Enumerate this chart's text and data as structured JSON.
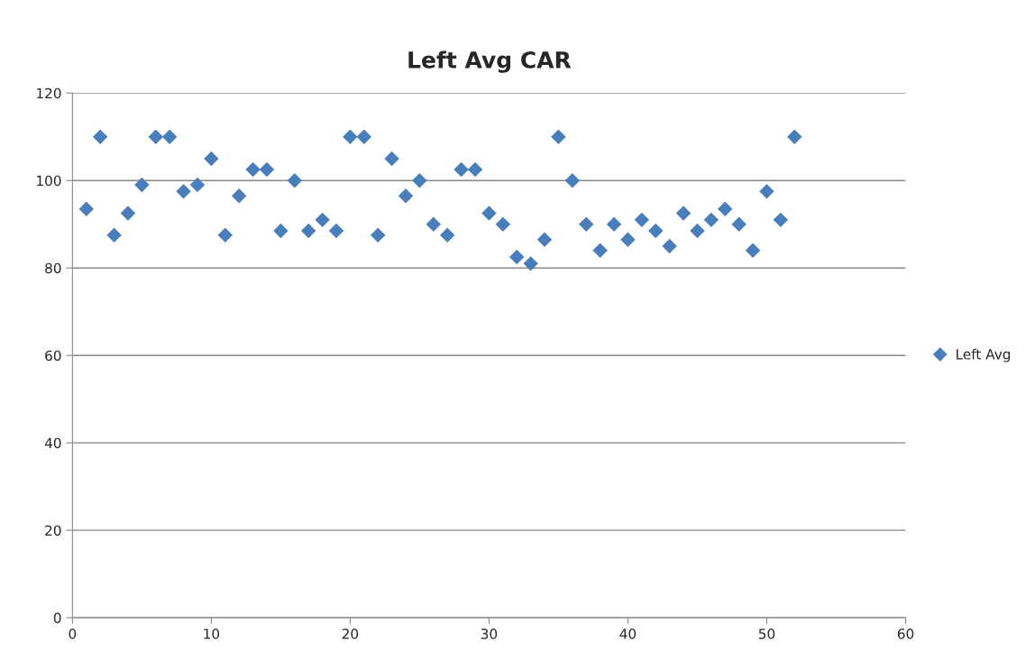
{
  "chart_data": {
    "type": "scatter",
    "title": "Left Avg CAR",
    "x": [
      1,
      2,
      3,
      4,
      5,
      6,
      7,
      8,
      9,
      10,
      11,
      12,
      13,
      14,
      15,
      16,
      17,
      18,
      19,
      20,
      21,
      22,
      23,
      24,
      25,
      26,
      27,
      28,
      29,
      30,
      31,
      32,
      33,
      34,
      35,
      36,
      37,
      38,
      39,
      40,
      41,
      42,
      43,
      44,
      45,
      46,
      47,
      48,
      49,
      50,
      51,
      52
    ],
    "series": [
      {
        "name": "Left Avg",
        "color": "#4a7ebb",
        "values": [
          93.5,
          110,
          87.5,
          92.5,
          99,
          110,
          110,
          97.5,
          99,
          105,
          87.5,
          96.5,
          102.5,
          102.5,
          88.5,
          100,
          88.5,
          91,
          88.5,
          110,
          110,
          87.5,
          105,
          96.5,
          100,
          90,
          87.5,
          102.5,
          102.5,
          92.5,
          90,
          82.5,
          81,
          86.5,
          110,
          100,
          90,
          84,
          90,
          86.5,
          91,
          88.5,
          85,
          92.5,
          88.5,
          91,
          93.5,
          90,
          84,
          97.5,
          91,
          110
        ]
      }
    ],
    "xlim": [
      0,
      60
    ],
    "xticks": [
      0,
      10,
      20,
      30,
      40,
      50,
      60
    ],
    "ylim": [
      0,
      120
    ],
    "yticks": [
      0,
      20,
      40,
      60,
      80,
      100,
      120
    ],
    "grid": "y",
    "legend": "right",
    "marker": "diamond"
  }
}
